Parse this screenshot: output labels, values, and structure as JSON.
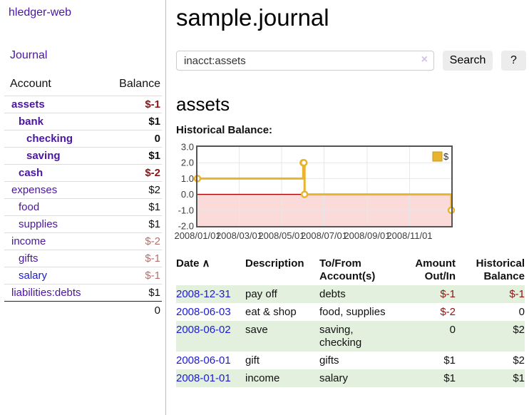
{
  "colors": {
    "link_purple": "#4a16a0",
    "link_blue": "#1b1bd2",
    "negative_dark": "#8b1414",
    "negative_light": "#b96e6e",
    "row_green": "#e3f0de",
    "button_bg": "#ececec"
  },
  "sidebar": {
    "app_title": "hledger-web",
    "nav": {
      "journal": "Journal"
    },
    "table": {
      "headers": {
        "account": "Account",
        "balance": "Balance"
      },
      "accounts": [
        {
          "name": "assets",
          "balance": "$-1",
          "level": 1,
          "bold": true,
          "balance_class": "neg-dark"
        },
        {
          "name": "bank",
          "balance": "$1",
          "level": 2,
          "bold": true,
          "balance_class": ""
        },
        {
          "name": "checking",
          "balance": "0",
          "level": 3,
          "bold": true,
          "balance_class": ""
        },
        {
          "name": "saving",
          "balance": "$1",
          "level": 3,
          "bold": true,
          "balance_class": ""
        },
        {
          "name": "cash",
          "balance": "$-2",
          "level": 2,
          "bold": true,
          "balance_class": "neg-dark"
        },
        {
          "name": "expenses",
          "balance": "$2",
          "level": 1,
          "bold": false,
          "balance_class": ""
        },
        {
          "name": "food",
          "balance": "$1",
          "level": 2,
          "bold": false,
          "balance_class": ""
        },
        {
          "name": "supplies",
          "balance": "$1",
          "level": 2,
          "bold": false,
          "balance_class": ""
        },
        {
          "name": "income",
          "balance": "$-2",
          "level": 1,
          "bold": false,
          "balance_class": "neg-light"
        },
        {
          "name": "gifts",
          "balance": "$-1",
          "level": 2,
          "bold": false,
          "balance_class": "neg-light"
        },
        {
          "name": "salary",
          "balance": "$-1",
          "level": 2,
          "bold": false,
          "balance_class": "neg-light",
          "link_color": "blue"
        },
        {
          "name": "liabilities:debts",
          "balance": "$1",
          "level": 1,
          "bold": false,
          "balance_class": ""
        }
      ],
      "total": "0"
    }
  },
  "main": {
    "title": "sample.journal",
    "search": {
      "value": "inacct:assets",
      "clear_icon": "×",
      "button_label": "Search",
      "help_label": "?"
    },
    "account_heading": "assets",
    "chart_heading": "Historical Balance:"
  },
  "chart_data": {
    "type": "line",
    "title": "Historical Balance",
    "step": true,
    "negative_region_shaded": true,
    "legend": [
      {
        "label": "$",
        "color": "#e8b42d"
      }
    ],
    "series": [
      {
        "name": "$",
        "points": [
          [
            "2008-01-01",
            1
          ],
          [
            "2008-06-01",
            2
          ],
          [
            "2008-06-02",
            2
          ],
          [
            "2008-06-03",
            0
          ],
          [
            "2008-12-31",
            -1
          ]
        ]
      }
    ],
    "x_range": [
      "2008-01-01",
      "2008-12-31"
    ],
    "x_ticks": [
      "2008/01/01",
      "2008/03/01",
      "2008/05/01",
      "2008/07/01",
      "2008/09/01",
      "2008/11/01"
    ],
    "y_ticks": [
      "3.0",
      "2.0",
      "1.0",
      "0.0",
      "-1.0",
      "-2.0"
    ],
    "ylim": [
      -2,
      3
    ],
    "style": {
      "line_color": "#e8b42d",
      "marker_fill": "#ffffff",
      "zero_line_color": "#a40000",
      "negative_fill": "#fbdada",
      "grid_color": "#e7e7e7",
      "border_color": "#545454",
      "label_color": "#3c3c3c"
    }
  },
  "register": {
    "headers": {
      "date": "Date",
      "sort_icon": "∧",
      "description": "Description",
      "tofrom": "To/From Account(s)",
      "amount": "Amount Out/In",
      "balance": "Historical Balance"
    },
    "rows": [
      {
        "date": "2008-12-31",
        "description": "pay off",
        "tofrom": "debts",
        "amount": "$-1",
        "amount_neg": true,
        "balance": "$-1",
        "balance_neg": true,
        "shaded": true
      },
      {
        "date": "2008-06-03",
        "description": "eat & shop",
        "tofrom": "food, supplies",
        "amount": "$-2",
        "amount_neg": true,
        "balance": "0",
        "balance_neg": false,
        "shaded": false
      },
      {
        "date": "2008-06-02",
        "description": "save",
        "tofrom": "saving, checking",
        "amount": "0",
        "amount_neg": false,
        "balance": "$2",
        "balance_neg": false,
        "shaded": true
      },
      {
        "date": "2008-06-01",
        "description": "gift",
        "tofrom": "gifts",
        "amount": "$1",
        "amount_neg": false,
        "balance": "$2",
        "balance_neg": false,
        "shaded": false
      },
      {
        "date": "2008-01-01",
        "description": "income",
        "tofrom": "salary",
        "amount": "$1",
        "amount_neg": false,
        "balance": "$1",
        "balance_neg": false,
        "shaded": true
      }
    ]
  }
}
